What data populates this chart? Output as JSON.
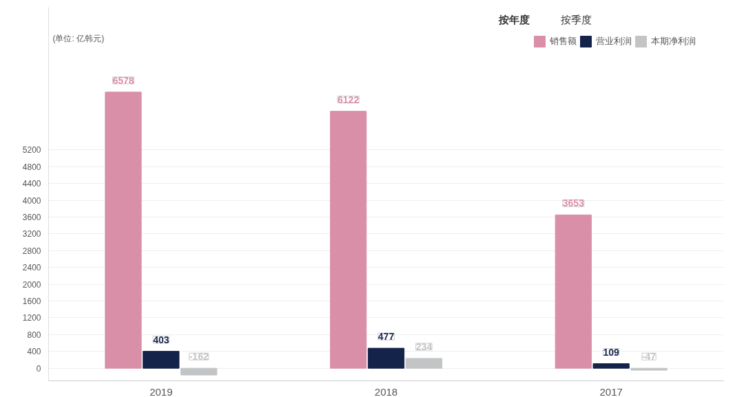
{
  "chart_data": {
    "type": "bar",
    "ylabel": "(单位: 亿韩元)",
    "annotations": [
      "按年度",
      "按季度"
    ],
    "categories": [
      "2019",
      "2018",
      "2017"
    ],
    "series": [
      {
        "name": "销售额",
        "color": "#d98fa8",
        "values": [
          6578,
          6122,
          3653
        ]
      },
      {
        "name": "营业利润",
        "color": "#14234a",
        "values": [
          403,
          477,
          109
        ]
      },
      {
        "name": "本期净利润",
        "color": "#c2c4c6",
        "values": [
          -162,
          234,
          -47
        ]
      }
    ],
    "ylim": [
      -300,
      8600
    ],
    "yticks": [
      0,
      400,
      800,
      1200,
      1600,
      2000,
      2400,
      2800,
      3200,
      3600,
      4000,
      4400,
      4800,
      5200
    ],
    "grid": "y",
    "legend": "top right",
    "data_labels": true
  }
}
